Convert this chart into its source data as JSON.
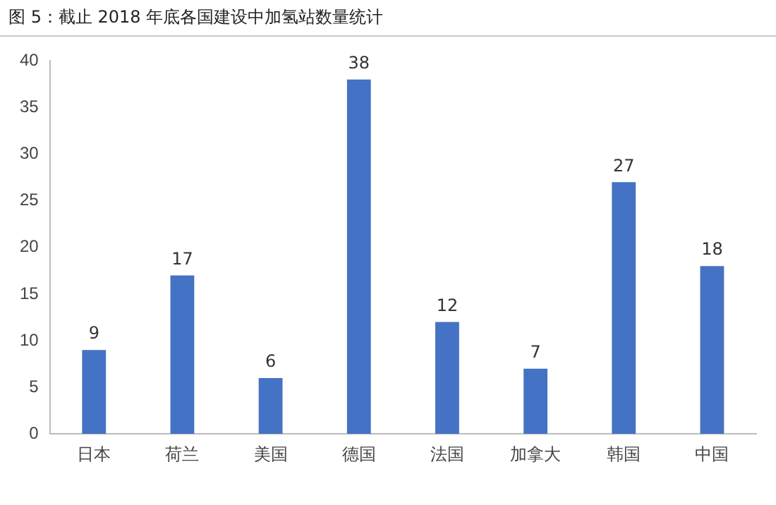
{
  "chart_data": {
    "type": "bar",
    "title": "图 5：截止 2018 年底各国建设中加氢站数量统计",
    "categories": [
      "日本",
      "荷兰",
      "美国",
      "德国",
      "法国",
      "加拿大",
      "韩国",
      "中国"
    ],
    "values": [
      9,
      17,
      6,
      38,
      12,
      7,
      27,
      18
    ],
    "color": "#4472c4",
    "ylim": [
      0,
      40
    ],
    "yticks": [
      0,
      5,
      10,
      15,
      20,
      25,
      30,
      35,
      40
    ],
    "grid": false,
    "data_labels": true
  }
}
